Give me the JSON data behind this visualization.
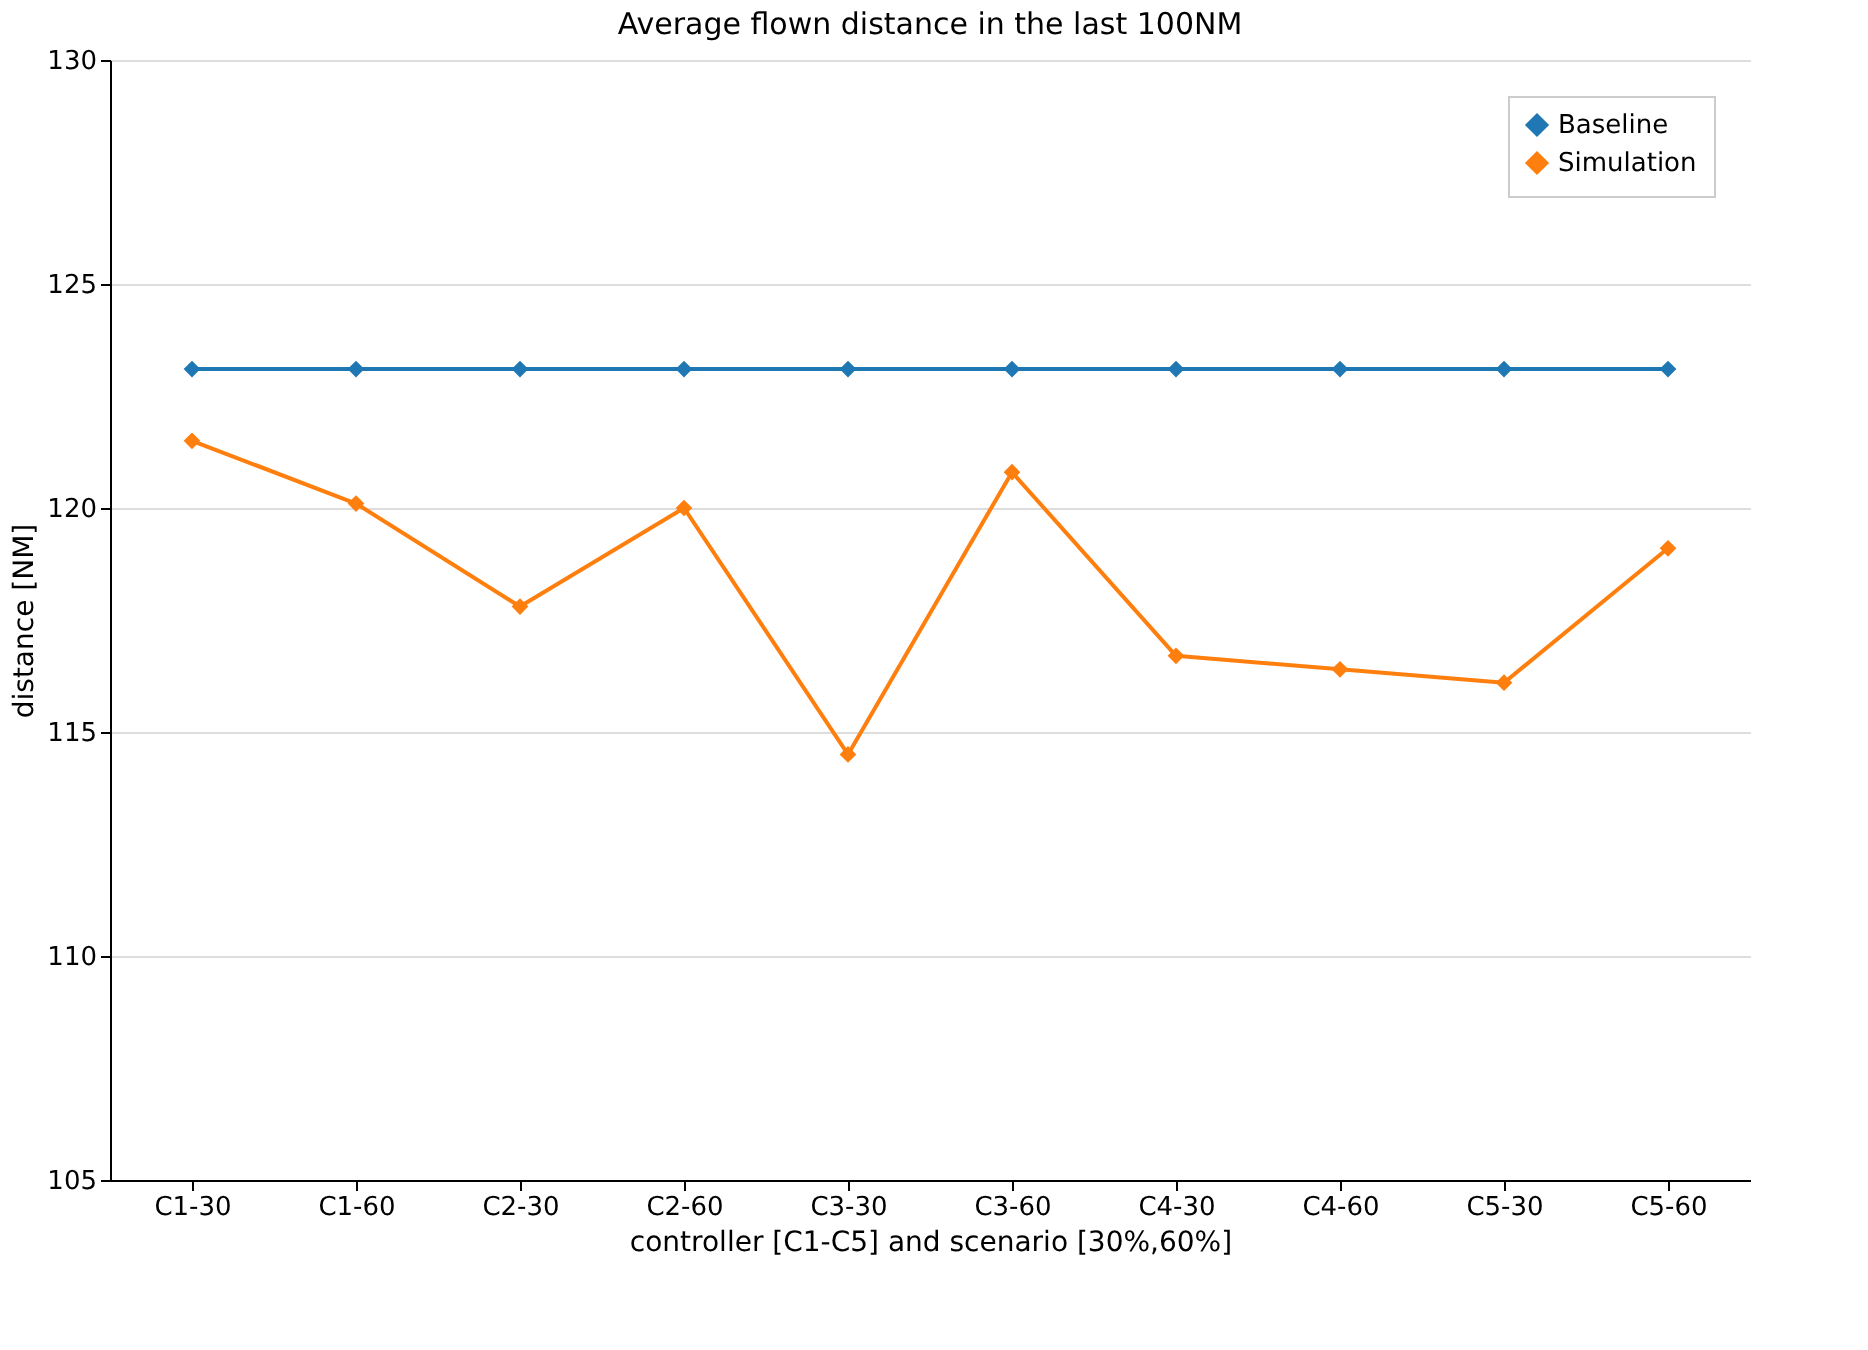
{
  "chart_data": {
    "type": "line",
    "title": "Average flown distance in the last 100NM",
    "xlabel": "controller [C1-C5] and scenario [30%,60%]",
    "ylabel": "distance [NM]",
    "categories": [
      "C1-30",
      "C1-60",
      "C2-30",
      "C2-60",
      "C3-30",
      "C3-60",
      "C4-30",
      "C4-60",
      "C5-30",
      "C5-60"
    ],
    "series": [
      {
        "name": "Baseline",
        "color": "#1f77b4",
        "values": [
          123.1,
          123.1,
          123.1,
          123.1,
          123.1,
          123.1,
          123.1,
          123.1,
          123.1,
          123.1
        ]
      },
      {
        "name": "Simulation",
        "color": "#ff7f0e",
        "values": [
          121.5,
          120.1,
          117.8,
          120.0,
          114.5,
          120.8,
          116.7,
          116.4,
          116.1,
          119.1
        ]
      }
    ],
    "ylim": [
      105,
      130
    ],
    "yticks": [
      105,
      110,
      115,
      120,
      125,
      130
    ],
    "grid": "y",
    "legend": "top right",
    "marker": "diamond",
    "line_style": "solid"
  }
}
